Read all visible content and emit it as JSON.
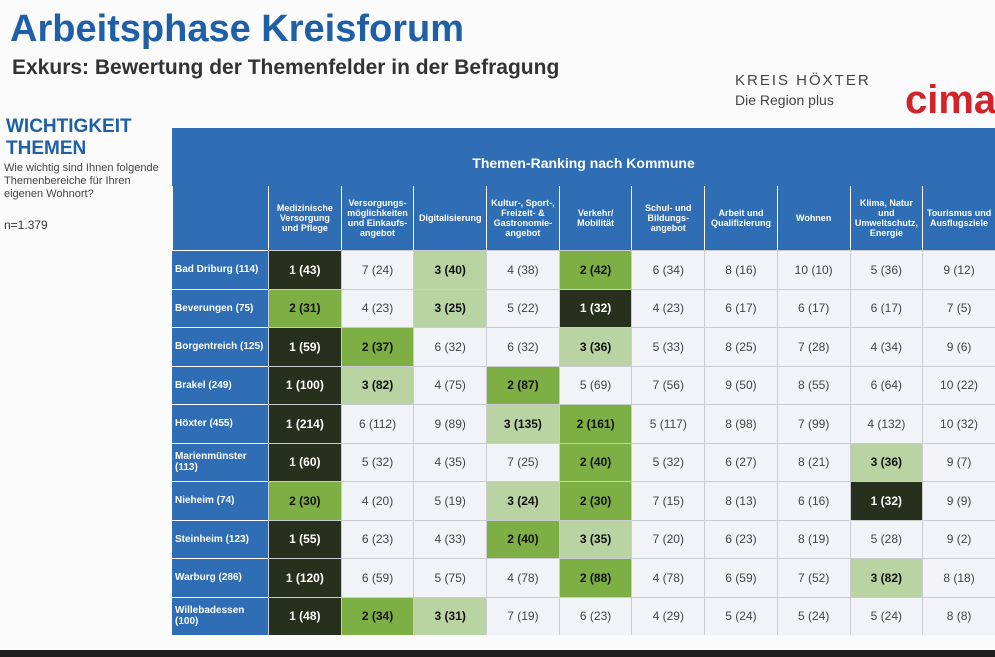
{
  "header": {
    "title": "Arbeitsphase Kreisforum",
    "subtitle": "Exkurs: Bewertung der Themenfelder in der Befragung"
  },
  "logos": {
    "kreis": "KREIS HÖXTER",
    "region": "Die Region plus",
    "cima": "cima"
  },
  "sidebar": {
    "heading": "WICHTIGKEIT THEMEN",
    "question": "Wie wichtig sind Ihnen folgende Themenbereiche für Ihren eigenen Wohnort?",
    "n": "n=1.379"
  },
  "table": {
    "title": "Themen-Ranking nach Kommune",
    "columns": [
      "Medizinische Versorgung und Pflege",
      "Versorgungs-möglichkeiten und Einkaufs-angebot",
      "Digitalisierung",
      "Kultur-, Sport-, Freizeit- & Gastronomie-angebot",
      "Verkehr/ Mobilität",
      "Schul- und Bildungs-angebot",
      "Arbeit und Qualifizierung",
      "Wohnen",
      "Klima, Natur und Umweltschutz, Energie",
      "Tourismus und Ausflugsziele"
    ],
    "rows": [
      {
        "label": "Bad Driburg (114)",
        "cells": [
          "1 (43)",
          "7 (24)",
          "3 (40)",
          "4 (38)",
          "2 (42)",
          "6 (34)",
          "8 (16)",
          "10 (10)",
          "5 (36)",
          "9 (12)"
        ]
      },
      {
        "label": "Beverungen (75)",
        "cells": [
          "2 (31)",
          "4 (23)",
          "3 (25)",
          "5 (22)",
          "1 (32)",
          "4 (23)",
          "6 (17)",
          "6 (17)",
          "6 (17)",
          "7 (5)"
        ]
      },
      {
        "label": "Borgentreich (125)",
        "cells": [
          "1 (59)",
          "2 (37)",
          "6 (32)",
          "6 (32)",
          "3 (36)",
          "5 (33)",
          "8 (25)",
          "7 (28)",
          "4 (34)",
          "9 (6)"
        ]
      },
      {
        "label": "Brakel (249)",
        "cells": [
          "1 (100)",
          "3 (82)",
          "4 (75)",
          "2 (87)",
          "5 (69)",
          "7 (56)",
          "9 (50)",
          "8 (55)",
          "6 (64)",
          "10 (22)"
        ]
      },
      {
        "label": "Höxter (455)",
        "cells": [
          "1 (214)",
          "6 (112)",
          "9 (89)",
          "3 (135)",
          "2 (161)",
          "5 (117)",
          "8 (98)",
          "7 (99)",
          "4 (132)",
          "10 (32)"
        ]
      },
      {
        "label": "Marienmünster (113)",
        "cells": [
          "1 (60)",
          "5 (32)",
          "4 (35)",
          "7 (25)",
          "2 (40)",
          "5 (32)",
          "6 (27)",
          "8 (21)",
          "3 (36)",
          "9 (7)"
        ]
      },
      {
        "label": "Nieheim (74)",
        "cells": [
          "2 (30)",
          "4 (20)",
          "5 (19)",
          "3 (24)",
          "2 (30)",
          "7 (15)",
          "8 (13)",
          "6 (16)",
          "1 (32)",
          "9 (9)"
        ]
      },
      {
        "label": "Steinheim (123)",
        "cells": [
          "1 (55)",
          "6 (23)",
          "4 (33)",
          "2 (40)",
          "3 (35)",
          "7 (20)",
          "6 (23)",
          "8 (19)",
          "5 (28)",
          "9 (2)"
        ]
      },
      {
        "label": "Warburg (286)",
        "cells": [
          "1 (120)",
          "6 (59)",
          "5 (75)",
          "4 (78)",
          "2 (88)",
          "4 (78)",
          "6 (59)",
          "7 (52)",
          "3 (82)",
          "8 (18)"
        ]
      },
      {
        "label": "Willebadessen (100)",
        "cells": [
          "1 (48)",
          "2 (34)",
          "3 (31)",
          "7 (19)",
          "6 (23)",
          "4 (29)",
          "5 (24)",
          "5 (24)",
          "5 (24)",
          "8 (8)"
        ]
      }
    ]
  }
}
